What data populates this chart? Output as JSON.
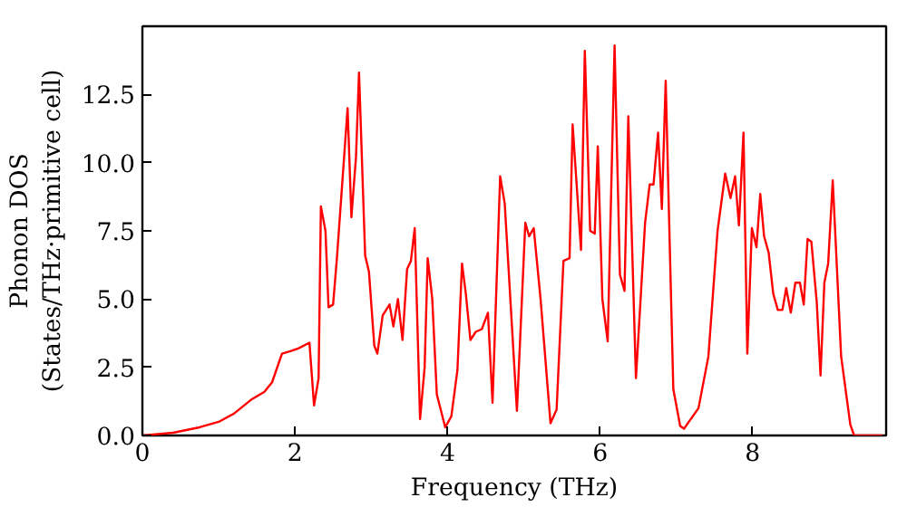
{
  "chart_data": {
    "type": "line",
    "xlabel": "Frequency (THz)",
    "ylabel": "Phonon DOS\n(States/THz·primitive cell)",
    "xlim": [
      0,
      9.75
    ],
    "ylim": [
      0,
      15
    ],
    "xticks": [
      0,
      2,
      4,
      6,
      8
    ],
    "yticks": [
      {
        "value": 0,
        "label": "0.0"
      },
      {
        "value": 2.5,
        "label": "2.5"
      },
      {
        "value": 5,
        "label": "5.0"
      },
      {
        "value": 7.5,
        "label": "7.5"
      },
      {
        "value": 10,
        "label": "10.0"
      },
      {
        "value": 12.5,
        "label": "12.5"
      }
    ],
    "grid": false,
    "marker": "none",
    "line_style": "solid",
    "series": [
      {
        "color": "#ff0000",
        "x": [
          0,
          0.4,
          0.75,
          1.0,
          1.2,
          1.42,
          1.6,
          1.7,
          1.83,
          1.95,
          2.05,
          2.19,
          2.25,
          2.31,
          2.34,
          2.4,
          2.44,
          2.5,
          2.55,
          2.69,
          2.74,
          2.8,
          2.84,
          2.92,
          2.97,
          3.04,
          3.08,
          3.15,
          3.24,
          3.29,
          3.35,
          3.41,
          3.47,
          3.52,
          3.57,
          3.64,
          3.7,
          3.74,
          3.8,
          3.86,
          3.97,
          4.05,
          4.13,
          4.19,
          4.24,
          4.3,
          4.37,
          4.45,
          4.53,
          4.59,
          4.69,
          4.75,
          4.91,
          5.02,
          5.07,
          5.13,
          5.22,
          5.35,
          5.43,
          5.52,
          5.6,
          5.64,
          5.75,
          5.8,
          5.87,
          5.93,
          5.97,
          6.03,
          6.1,
          6.19,
          6.26,
          6.32,
          6.37,
          6.47,
          6.59,
          6.65,
          6.7,
          6.76,
          6.81,
          6.86,
          6.96,
          7.05,
          7.1,
          7.29,
          7.42,
          7.54,
          7.64,
          7.71,
          7.77,
          7.82,
          7.88,
          7.93,
          7.99,
          8.05,
          8.1,
          8.15,
          8.21,
          8.27,
          8.33,
          8.39,
          8.44,
          8.5,
          8.56,
          8.62,
          8.67,
          8.72,
          8.77,
          8.84,
          8.89,
          8.94,
          8.99,
          9.05,
          9.16,
          9.28,
          9.33,
          9.7
        ],
        "values": [
          0,
          0.1,
          0.3,
          0.5,
          0.8,
          1.3,
          1.6,
          1.95,
          3.0,
          3.1,
          3.2,
          3.4,
          1.1,
          2.1,
          8.4,
          7.5,
          4.7,
          4.8,
          6.5,
          12.0,
          8.0,
          10.2,
          13.3,
          6.6,
          6.0,
          3.3,
          3.0,
          4.4,
          4.8,
          4.0,
          5.0,
          3.5,
          6.1,
          6.4,
          7.6,
          0.6,
          2.5,
          6.5,
          5.0,
          1.5,
          0.3,
          0.7,
          2.4,
          6.3,
          5.2,
          3.5,
          3.8,
          3.9,
          4.5,
          1.2,
          9.5,
          8.5,
          0.9,
          7.8,
          7.3,
          7.6,
          5.0,
          0.45,
          0.95,
          6.4,
          6.5,
          11.4,
          6.8,
          14.1,
          7.5,
          7.4,
          10.6,
          5.0,
          3.45,
          14.3,
          5.9,
          5.3,
          11.7,
          2.1,
          7.8,
          9.2,
          9.2,
          11.1,
          8.3,
          13.0,
          1.7,
          0.35,
          0.25,
          1.0,
          2.9,
          7.5,
          9.6,
          8.7,
          9.5,
          7.7,
          11.1,
          3.0,
          7.6,
          6.9,
          8.85,
          7.3,
          6.7,
          5.2,
          4.6,
          4.6,
          5.4,
          4.5,
          5.6,
          5.6,
          4.8,
          7.2,
          7.1,
          4.9,
          2.2,
          5.6,
          6.3,
          9.35,
          2.9,
          0.4,
          0,
          0
        ]
      }
    ]
  }
}
